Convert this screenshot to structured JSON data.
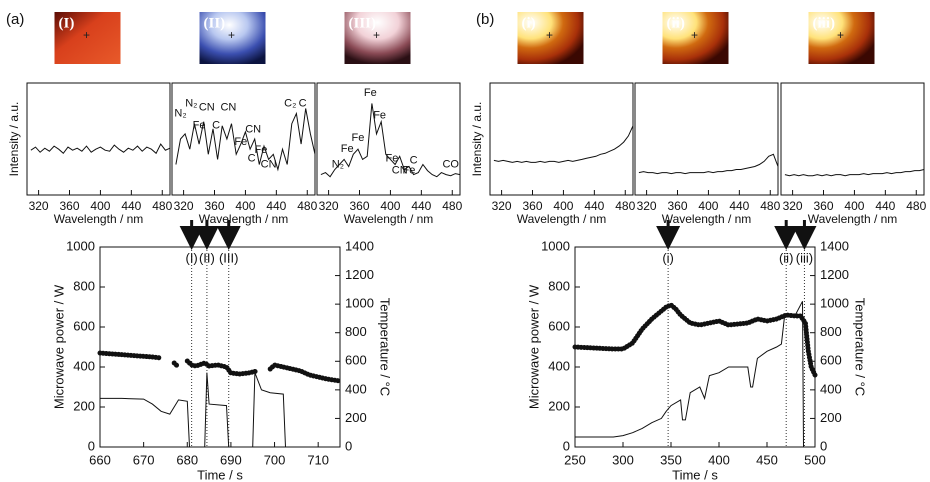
{
  "panel_labels": [
    "(a)",
    "(b)"
  ],
  "chart_data": [
    {
      "type": "line",
      "image_label": "(I)",
      "x": [
        310,
        316,
        322,
        328,
        334,
        340,
        346,
        352,
        358,
        364,
        370,
        376,
        382,
        388,
        394,
        400,
        406,
        412,
        418,
        424,
        430,
        436,
        442,
        448,
        454,
        460,
        466,
        472,
        478,
        484,
        490
      ],
      "series": [
        {
          "color": "#111",
          "marker": "line",
          "values": [
            44,
            47,
            42,
            46,
            43,
            48,
            45,
            41,
            47,
            44,
            46,
            43,
            48,
            42,
            45,
            47,
            44,
            43,
            49,
            45,
            42,
            46,
            44,
            48,
            43,
            47,
            45,
            41,
            50,
            44,
            46
          ]
        }
      ],
      "xlim": [
        305,
        490
      ],
      "ylim": [
        0,
        110
      ],
      "xticks": [
        320,
        360,
        400,
        440,
        480
      ],
      "xlabel": "Wavelength / nm",
      "ylabel": "Intensity / a.u."
    },
    {
      "type": "line",
      "image_label": "(II)",
      "x": [
        310,
        316,
        322,
        328,
        334,
        340,
        346,
        352,
        358,
        364,
        370,
        376,
        382,
        388,
        394,
        400,
        406,
        412,
        418,
        424,
        430,
        436,
        442,
        448,
        454,
        460,
        466,
        472,
        478,
        484,
        490
      ],
      "series": [
        {
          "color": "#111",
          "marker": "line",
          "values": [
            30,
            55,
            60,
            45,
            70,
            50,
            72,
            40,
            65,
            35,
            68,
            55,
            70,
            40,
            50,
            62,
            45,
            55,
            30,
            48,
            35,
            40,
            25,
            45,
            30,
            70,
            80,
            50,
            85,
            60,
            40
          ]
        }
      ],
      "xlim": [
        305,
        490
      ],
      "ylim": [
        0,
        110
      ],
      "xticks": [
        320,
        360,
        400,
        440,
        480
      ],
      "xlabel": "Wavelength / nm",
      "annotations": [
        {
          "text": "N₂",
          "x": 316,
          "y": 80
        },
        {
          "text": "N₂",
          "x": 330,
          "y": 90
        },
        {
          "text": "CN",
          "x": 350,
          "y": 86
        },
        {
          "text": "Fe",
          "x": 340,
          "y": 68
        },
        {
          "text": "C",
          "x": 362,
          "y": 68
        },
        {
          "text": "CN",
          "x": 378,
          "y": 86
        },
        {
          "text": "CN",
          "x": 410,
          "y": 64
        },
        {
          "text": "Fe",
          "x": 394,
          "y": 52
        },
        {
          "text": "Fe",
          "x": 420,
          "y": 44
        },
        {
          "text": "C",
          "x": 408,
          "y": 36
        },
        {
          "text": "CN",
          "x": 430,
          "y": 30
        },
        {
          "text": "C₂",
          "x": 458,
          "y": 90
        },
        {
          "text": "C",
          "x": 474,
          "y": 90
        }
      ]
    },
    {
      "type": "line",
      "image_label": "(III)",
      "x": [
        310,
        316,
        322,
        328,
        334,
        340,
        346,
        352,
        358,
        364,
        370,
        376,
        382,
        388,
        394,
        400,
        406,
        412,
        418,
        424,
        430,
        436,
        442,
        448,
        454,
        460,
        466,
        472,
        478,
        484,
        490
      ],
      "series": [
        {
          "color": "#111",
          "marker": "line",
          "values": [
            20,
            22,
            18,
            25,
            30,
            35,
            28,
            40,
            45,
            35,
            38,
            90,
            60,
            72,
            40,
            35,
            30,
            38,
            25,
            28,
            20,
            22,
            30,
            24,
            20,
            18,
            22,
            20,
            19,
            21,
            20
          ]
        }
      ],
      "xlim": [
        305,
        490
      ],
      "ylim": [
        0,
        110
      ],
      "xticks": [
        320,
        360,
        400,
        440,
        480
      ],
      "xlabel": "Wavelength / nm",
      "annotations": [
        {
          "text": "Fe",
          "x": 374,
          "y": 100
        },
        {
          "text": "Fe",
          "x": 386,
          "y": 78
        },
        {
          "text": "Fe",
          "x": 358,
          "y": 56
        },
        {
          "text": "Fe",
          "x": 344,
          "y": 45
        },
        {
          "text": "N₂",
          "x": 332,
          "y": 30
        },
        {
          "text": "Fe",
          "x": 402,
          "y": 36
        },
        {
          "text": "Fe",
          "x": 424,
          "y": 24
        },
        {
          "text": "CN",
          "x": 412,
          "y": 24
        },
        {
          "text": "C",
          "x": 430,
          "y": 34
        },
        {
          "text": "CO",
          "x": 478,
          "y": 30
        }
      ]
    },
    {
      "type": "line",
      "xlim": [
        660,
        715
      ],
      "ylim": [
        0,
        1000
      ],
      "y2lim": [
        0,
        1400
      ],
      "xticks": [
        660,
        670,
        680,
        690,
        700,
        710
      ],
      "yticks": [
        0,
        200,
        400,
        600,
        800,
        1000
      ],
      "y2ticks": [
        0,
        200,
        400,
        600,
        800,
        1000,
        1200,
        1400
      ],
      "xlabel": "Time / s",
      "ylabel": "Microwave power / W",
      "y2label": "Temperature / °C",
      "series": [
        {
          "color": "#111",
          "marker": "dots",
          "x": [
            660,
            663,
            666,
            669,
            672,
            674,
            675,
            677,
            678,
            679,
            680,
            681,
            682,
            684,
            685,
            687,
            689,
            690,
            692,
            694,
            696,
            697,
            699,
            700,
            702,
            704,
            706,
            708,
            710,
            712,
            715
          ],
          "values": [
            470,
            465,
            460,
            455,
            450,
            445,
            null,
            420,
            400,
            null,
            430,
            410,
            405,
            420,
            405,
            410,
            400,
            370,
            365,
            370,
            380,
            null,
            390,
            410,
            400,
            390,
            380,
            360,
            350,
            340,
            330
          ]
        },
        {
          "color": "#111",
          "marker": "line",
          "axis": "y2",
          "x": [
            660,
            665,
            670,
            672,
            674,
            676,
            678,
            680,
            680.5,
            684,
            684.5,
            685,
            689,
            689.5,
            690,
            695,
            695.5,
            697,
            699,
            702,
            702.5
          ],
          "values": [
            340,
            340,
            335,
            300,
            250,
            230,
            330,
            320,
            0,
            0,
            520,
            300,
            290,
            0,
            null,
            0,
            520,
            400,
            380,
            370,
            0
          ]
        }
      ],
      "markers": [
        {
          "x": 681,
          "label": "(I)"
        },
        {
          "x": 684.5,
          "label": "(II)"
        },
        {
          "x": 689.5,
          "label": "(III)"
        }
      ]
    },
    {
      "type": "line",
      "image_label": "(i)",
      "x": [
        310,
        316,
        322,
        328,
        334,
        340,
        346,
        352,
        358,
        364,
        370,
        376,
        382,
        388,
        394,
        400,
        406,
        412,
        418,
        424,
        430,
        436,
        442,
        448,
        454,
        460,
        466,
        472,
        478,
        484,
        490
      ],
      "series": [
        {
          "color": "#111",
          "marker": "line",
          "values": [
            34,
            33,
            34,
            33,
            32,
            33,
            32,
            33,
            32,
            32,
            33,
            32,
            33,
            33,
            32,
            33,
            34,
            33,
            34,
            35,
            36,
            37,
            38,
            40,
            41,
            43,
            45,
            48,
            52,
            58,
            68
          ]
        }
      ],
      "xlim": [
        305,
        490
      ],
      "ylim": [
        0,
        110
      ],
      "xticks": [
        320,
        360,
        400,
        440,
        480
      ],
      "xlabel": "Wavelength / nm",
      "ylabel": "Intensity / a.u."
    },
    {
      "type": "line",
      "image_label": "(ii)",
      "x": [
        310,
        316,
        322,
        328,
        334,
        340,
        346,
        352,
        358,
        364,
        370,
        376,
        382,
        388,
        394,
        400,
        406,
        412,
        418,
        424,
        430,
        436,
        442,
        448,
        454,
        460,
        466,
        472,
        478,
        484,
        490
      ],
      "series": [
        {
          "color": "#111",
          "marker": "line",
          "values": [
            22,
            23,
            22,
            22,
            21,
            22,
            22,
            21,
            22,
            22,
            21,
            22,
            22,
            22,
            22,
            23,
            22,
            23,
            23,
            24,
            24,
            25,
            25,
            26,
            27,
            28,
            30,
            33,
            38,
            40,
            28
          ]
        }
      ],
      "xlim": [
        305,
        490
      ],
      "ylim": [
        0,
        110
      ],
      "xticks": [
        320,
        360,
        400,
        440,
        480
      ],
      "xlabel": "Wavelength / nm"
    },
    {
      "type": "line",
      "image_label": "(iii)",
      "x": [
        310,
        316,
        322,
        328,
        334,
        340,
        346,
        352,
        358,
        364,
        370,
        376,
        382,
        388,
        394,
        400,
        406,
        412,
        418,
        424,
        430,
        436,
        442,
        448,
        454,
        460,
        466,
        472,
        478,
        484,
        490
      ],
      "series": [
        {
          "color": "#111",
          "marker": "line",
          "values": [
            20,
            19,
            20,
            19,
            20,
            19,
            19,
            20,
            19,
            20,
            19,
            20,
            20,
            19,
            20,
            20,
            20,
            21,
            20,
            21,
            21,
            21,
            22,
            21,
            22,
            22,
            23,
            23,
            24,
            24,
            25
          ]
        }
      ],
      "xlim": [
        305,
        490
      ],
      "ylim": [
        0,
        110
      ],
      "xticks": [
        320,
        360,
        400,
        440,
        480
      ],
      "xlabel": "Wavelength / nm"
    },
    {
      "type": "line",
      "xlim": [
        250,
        500
      ],
      "ylim": [
        0,
        1000
      ],
      "y2lim": [
        0,
        1400
      ],
      "xticks": [
        250,
        300,
        350,
        400,
        450,
        500
      ],
      "yticks": [
        0,
        200,
        400,
        600,
        800,
        1000
      ],
      "y2ticks": [
        0,
        200,
        400,
        600,
        800,
        1000,
        1200,
        1400
      ],
      "xlabel": "Time / s",
      "ylabel": "Microwave power / W",
      "y2label": "Temperature / °C",
      "series": [
        {
          "color": "#111",
          "marker": "dots",
          "x": [
            250,
            270,
            290,
            300,
            310,
            320,
            330,
            340,
            345,
            350,
            355,
            360,
            370,
            380,
            390,
            400,
            410,
            420,
            430,
            440,
            450,
            460,
            465,
            470,
            480,
            485,
            490,
            493,
            496,
            500
          ],
          "values": [
            500,
            495,
            490,
            490,
            520,
            590,
            640,
            680,
            700,
            710,
            690,
            660,
            620,
            610,
            620,
            630,
            610,
            615,
            620,
            640,
            630,
            640,
            650,
            660,
            655,
            655,
            620,
            480,
            400,
            360
          ]
        },
        {
          "color": "#111",
          "marker": "line",
          "axis": "y2",
          "x": [
            250,
            290,
            300,
            310,
            320,
            330,
            340,
            345,
            350,
            360,
            362,
            365,
            370,
            380,
            385,
            390,
            400,
            410,
            420,
            430,
            433,
            435,
            440,
            450,
            460,
            465,
            468,
            470,
            480,
            487,
            488
          ],
          "values": [
            70,
            70,
            80,
            100,
            130,
            170,
            200,
            250,
            290,
            330,
            190,
            190,
            380,
            420,
            340,
            500,
            520,
            560,
            560,
            560,
            420,
            420,
            620,
            670,
            700,
            720,
            900,
            930,
            930,
            1020,
            0
          ]
        }
      ],
      "markers": [
        {
          "x": 347,
          "label": "(i)"
        },
        {
          "x": 470,
          "label": "(ii)"
        },
        {
          "x": 489,
          "label": "(iii)"
        }
      ]
    }
  ]
}
